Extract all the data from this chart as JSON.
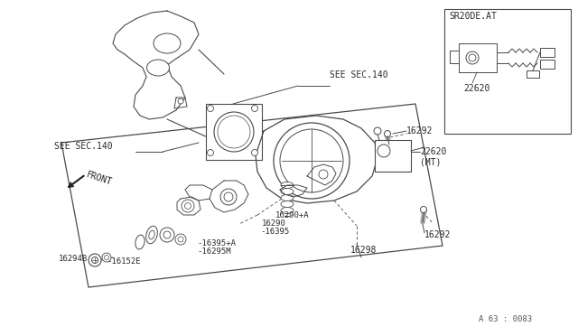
{
  "bg_color": "#ffffff",
  "line_color": "#4a4a4a",
  "figsize": [
    6.4,
    3.72
  ],
  "dpi": 100,
  "labels": {
    "see_sec140_left": "SEE SEC.140",
    "see_sec140_top": "SEE SEC.140",
    "front": "FRONT",
    "sr20de_at": "SR20DE.AT",
    "part_22620_mt": "22620\n(MT)",
    "part_22620": "22620",
    "part_16290a": "16290+A",
    "part_16290": "16290",
    "part_16395": "-16395",
    "part_16395a": "-16395+A",
    "part_16295m": "-16295M",
    "part_16152e": "-16152E",
    "part_16294b": "16294B",
    "part_16298": "16298",
    "part_16292a": "16292",
    "part_16292b": "16292",
    "ref_num": "A 63 : 0083"
  }
}
